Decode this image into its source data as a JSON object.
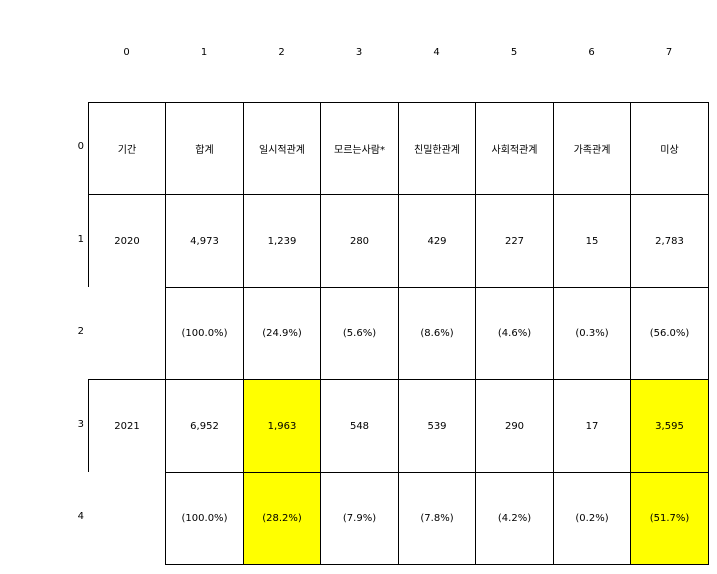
{
  "table": {
    "column_index": [
      "0",
      "1",
      "2",
      "3",
      "4",
      "5",
      "6",
      "7"
    ],
    "row_index": [
      "0",
      "1",
      "2",
      "3",
      "4"
    ],
    "highlight_color": "#ffff00",
    "rows": [
      [
        "기간",
        "합계",
        "일시적관계",
        "모르는사람*",
        "친밀한관계",
        "사회적관계",
        "가족관계",
        "미상"
      ],
      [
        "2020",
        "4,973",
        "1,239",
        "280",
        "429",
        "227",
        "15",
        "2,783"
      ],
      [
        "",
        "(100.0%)",
        "(24.9%)",
        "(5.6%)",
        "(8.6%)",
        "(4.6%)",
        "(0.3%)",
        "(56.0%)"
      ],
      [
        "2021",
        "6,952",
        "1,963",
        "548",
        "539",
        "290",
        "17",
        "3,595"
      ],
      [
        "",
        "(100.0%)",
        "(28.2%)",
        "(7.9%)",
        "(7.8%)",
        "(4.2%)",
        "(0.2%)",
        "(51.7%)"
      ]
    ]
  }
}
